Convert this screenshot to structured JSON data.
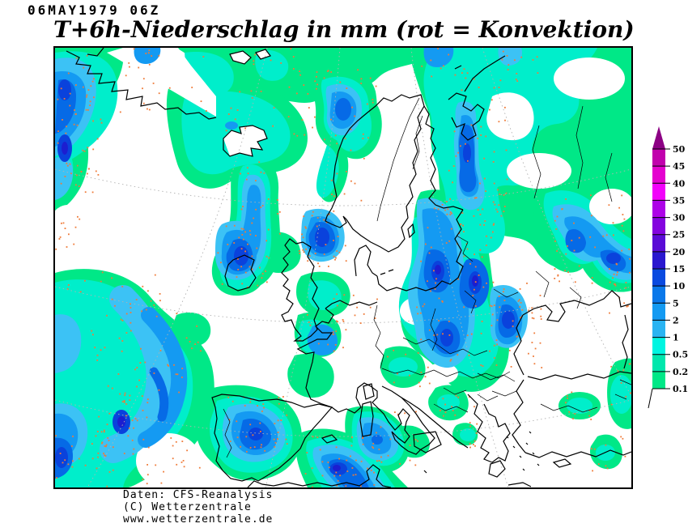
{
  "header": {
    "datetime": "06MAY1979 06Z",
    "title": "T+6h-Niederschlag in mm (rot = Konvektion)"
  },
  "legend": {
    "values_bottom_to_top": [
      "0.1",
      "0.2",
      "0.5",
      "1",
      "2",
      "5",
      "10",
      "15",
      "20",
      "25",
      "30",
      "35",
      "40",
      "45",
      "50"
    ],
    "colors_bottom_to_top": [
      "#00e887",
      "#00e7ad",
      "#00f5e1",
      "#2ab4f2",
      "#149af2",
      "#0a78ea",
      "#0a4ae0",
      "#2a17cf",
      "#5a0bd6",
      "#8404df",
      "#ad03e7",
      "#f202fa",
      "#e402cf",
      "#c101ad"
    ],
    "arrow_color": "#8c0184"
  },
  "map": {
    "convection_color": "#ef7b39",
    "convection_clusters": [
      [
        2,
        8,
        55,
        170,
        60
      ],
      [
        0,
        195,
        38,
        110,
        16
      ],
      [
        42,
        275,
        88,
        150,
        48
      ],
      [
        52,
        415,
        62,
        95,
        38
      ],
      [
        0,
        468,
        72,
        75,
        28
      ],
      [
        104,
        478,
        78,
        62,
        20
      ],
      [
        64,
        4,
        140,
        80,
        16
      ],
      [
        198,
        52,
        80,
        50,
        12
      ],
      [
        198,
        212,
        66,
        85,
        40
      ],
      [
        300,
        196,
        64,
        74,
        36
      ],
      [
        226,
        138,
        52,
        92,
        20
      ],
      [
        284,
        22,
        44,
        92,
        20
      ],
      [
        330,
        26,
        66,
        92,
        22
      ],
      [
        338,
        92,
        44,
        96,
        16
      ],
      [
        300,
        328,
        62,
        52,
        16
      ],
      [
        342,
        296,
        58,
        50,
        16
      ],
      [
        446,
        186,
        100,
        210,
        85
      ],
      [
        536,
        288,
        66,
        108,
        45
      ],
      [
        480,
        36,
        78,
        200,
        55
      ],
      [
        452,
        0,
        58,
        38,
        12
      ],
      [
        544,
        0,
        54,
        44,
        14
      ],
      [
        608,
        178,
        104,
        118,
        50
      ],
      [
        682,
        276,
        30,
        52,
        14
      ],
      [
        212,
        430,
        78,
        68,
        42
      ],
      [
        302,
        478,
        98,
        64,
        36
      ],
      [
        364,
        444,
        88,
        72,
        24
      ],
      [
        404,
        368,
        56,
        50,
        12
      ],
      [
        458,
        412,
        62,
        56,
        14
      ],
      [
        494,
        458,
        32,
        36,
        8
      ],
      [
        630,
        424,
        38,
        36,
        10
      ],
      [
        92,
        0,
        48,
        28,
        8
      ],
      [
        238,
        0,
        58,
        24,
        8
      ],
      [
        686,
        382,
        26,
        60,
        10
      ],
      [
        658,
        476,
        46,
        46,
        10
      ],
      [
        148,
        326,
        46,
        50,
        8
      ],
      [
        116,
        388,
        42,
        42,
        8
      ]
    ]
  },
  "footer": {
    "line1": "Daten: CFS-Reanalysis",
    "line2": "(C) Wetterzentrale",
    "line3": "www.wetterzentrale.de"
  }
}
